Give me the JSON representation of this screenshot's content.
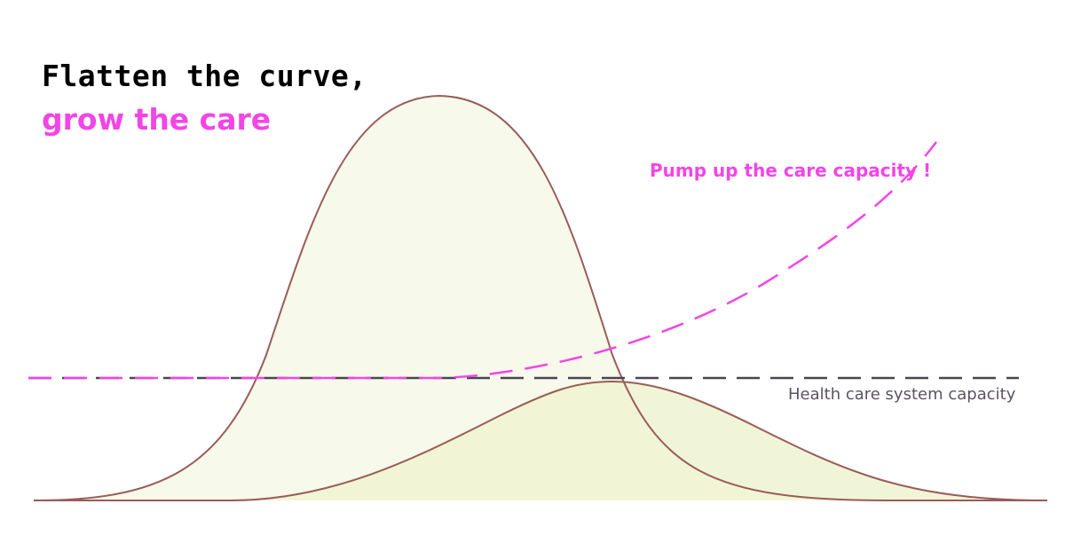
{
  "title": {
    "line1": "Flatten the curve,",
    "line2": "grow the care"
  },
  "labels": {
    "pump_capacity": "Pump up the care capacity !",
    "system_capacity": "Health care system capacity"
  },
  "colors": {
    "accent_pink": "#f245e6",
    "curve_stroke": "#9a5c58",
    "tall_fill": "#f7f9ea",
    "flat_fill": "#eff4d4",
    "capacity_line": "#4b4454",
    "label_gray": "#5a5460"
  }
}
